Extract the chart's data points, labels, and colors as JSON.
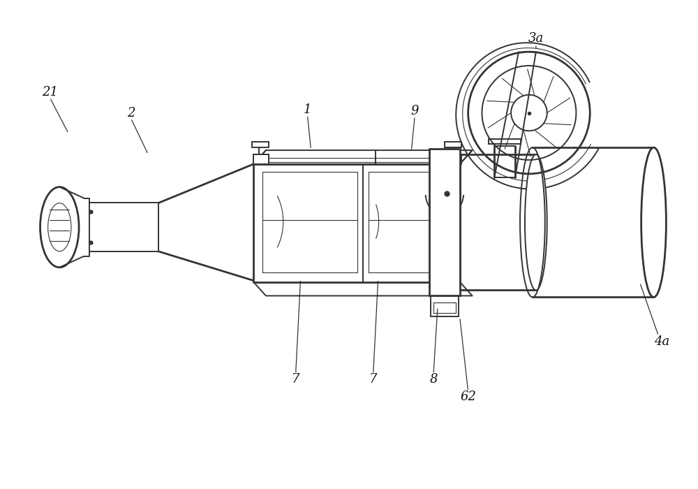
{
  "bg_color": "#ffffff",
  "lc": "#333333",
  "lw_heavy": 2.0,
  "lw_med": 1.4,
  "lw_thin": 0.8,
  "figsize": [
    10,
    7
  ],
  "dpi": 100
}
